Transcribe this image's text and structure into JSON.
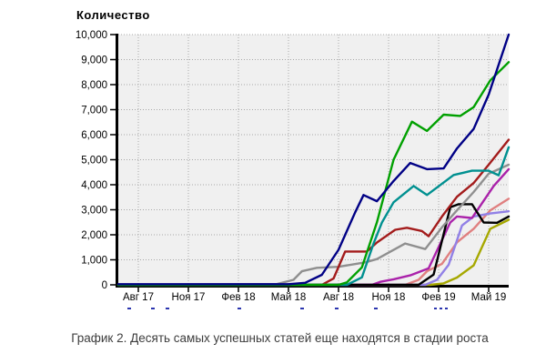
{
  "chart": {
    "title": "Количество",
    "caption": "График 2. Десять самых успешных статей еще находятся в стадии роста"
  },
  "chart_data": {
    "type": "line",
    "title": "Количество",
    "caption": "График 2. Десять самых успешных статей еще находятся в стадии роста",
    "xlabel": "",
    "ylabel": "Количество",
    "ylim": [
      0,
      10000
    ],
    "x_range_months": [
      -0.2,
      23.2
    ],
    "grid": "dotted",
    "plot_bg": "#f0f0f0",
    "grid_color": "#a8a8a8",
    "axis_color": "#000000",
    "legend_position": "clipped-below-axis",
    "clipped_legend_color": "#2b35af",
    "clipped_legend_marks": [
      [
        140,
        4
      ],
      [
        166,
        4
      ],
      [
        182,
        4
      ],
      [
        261,
        4
      ],
      [
        330,
        4
      ],
      [
        368,
        4
      ],
      [
        411,
        4
      ],
      [
        477,
        3
      ],
      [
        483,
        3
      ],
      [
        489,
        3
      ]
    ],
    "y_ticks": [
      {
        "value": 0,
        "label": "0"
      },
      {
        "value": 1000,
        "label": "1,000"
      },
      {
        "value": 2000,
        "label": "2,000"
      },
      {
        "value": 3000,
        "label": "3,000"
      },
      {
        "value": 4000,
        "label": "4,000"
      },
      {
        "value": 5000,
        "label": "5,000"
      },
      {
        "value": 6000,
        "label": "6,000"
      },
      {
        "value": 7000,
        "label": "7,000"
      },
      {
        "value": 8000,
        "label": "8,000"
      },
      {
        "value": 9000,
        "label": "9,000"
      },
      {
        "value": 10000,
        "label": "10,000"
      }
    ],
    "x_ticks": [
      {
        "month": 1,
        "label": "Авг 17"
      },
      {
        "month": 4,
        "label": "Ноя 17"
      },
      {
        "month": 7,
        "label": "Фев 18"
      },
      {
        "month": 10,
        "label": "Май 18"
      },
      {
        "month": 13,
        "label": "Авг 18"
      },
      {
        "month": 16,
        "label": "Ноя 18"
      },
      {
        "month": 19,
        "label": "Фев 19"
      },
      {
        "month": 22,
        "label": "Май 19"
      }
    ],
    "series": [
      {
        "name": "line-olive",
        "color": "#a6a800",
        "points": [
          [
            -0.2,
            0
          ],
          [
            18.5,
            0
          ],
          [
            19.3,
            60
          ],
          [
            20.1,
            290
          ],
          [
            21.1,
            780
          ],
          [
            22.1,
            2240
          ],
          [
            23.2,
            2600
          ]
        ]
      },
      {
        "name": "line-salmon",
        "color": "#e08080",
        "points": [
          [
            -0.2,
            0
          ],
          [
            17,
            0
          ],
          [
            17.8,
            200
          ],
          [
            18.3,
            540
          ],
          [
            19.2,
            840
          ],
          [
            20.1,
            1700
          ],
          [
            21.1,
            2240
          ],
          [
            22.1,
            2980
          ],
          [
            23.2,
            3440
          ]
        ]
      },
      {
        "name": "line-lavender",
        "color": "#9180e6",
        "points": [
          [
            -0.2,
            0
          ],
          [
            18.2,
            0
          ],
          [
            18.9,
            200
          ],
          [
            19.6,
            800
          ],
          [
            20.4,
            2370
          ],
          [
            21.1,
            2730
          ],
          [
            22.1,
            2850
          ],
          [
            23.2,
            2940
          ]
        ]
      },
      {
        "name": "line-magenta",
        "color": "#aa22aa",
        "points": [
          [
            -0.2,
            0
          ],
          [
            15,
            0
          ],
          [
            15.5,
            120
          ],
          [
            16.3,
            220
          ],
          [
            17.3,
            380
          ],
          [
            18.4,
            660
          ],
          [
            19.7,
            2490
          ],
          [
            20.1,
            2730
          ],
          [
            21,
            2670
          ],
          [
            22.3,
            3950
          ],
          [
            23.2,
            4620
          ]
        ]
      },
      {
        "name": "line-black",
        "color": "#000000",
        "points": [
          [
            -0.2,
            0
          ],
          [
            17.8,
            0
          ],
          [
            18.7,
            410
          ],
          [
            19.7,
            3100
          ],
          [
            20.2,
            3220
          ],
          [
            21,
            3220
          ],
          [
            21.7,
            2490
          ],
          [
            22.5,
            2480
          ],
          [
            23.2,
            2730
          ]
        ]
      },
      {
        "name": "line-gray",
        "color": "#8f8f8f",
        "points": [
          [
            -0.2,
            0
          ],
          [
            9.3,
            30
          ],
          [
            10.3,
            200
          ],
          [
            10.8,
            540
          ],
          [
            11.7,
            680
          ],
          [
            13,
            720
          ],
          [
            14.6,
            900
          ],
          [
            15.3,
            1030
          ],
          [
            17,
            1650
          ],
          [
            18.2,
            1430
          ],
          [
            19.2,
            2300
          ],
          [
            20.1,
            2980
          ],
          [
            21.1,
            3710
          ],
          [
            22,
            4440
          ],
          [
            23.2,
            4800
          ]
        ]
      },
      {
        "name": "line-darkred",
        "color": "#a31b1b",
        "points": [
          [
            -0.2,
            0
          ],
          [
            12,
            0
          ],
          [
            12.7,
            250
          ],
          [
            13.4,
            1330
          ],
          [
            14.7,
            1330
          ],
          [
            15.3,
            1690
          ],
          [
            16.4,
            2200
          ],
          [
            17.1,
            2280
          ],
          [
            18,
            2150
          ],
          [
            18.4,
            1940
          ],
          [
            19.2,
            2730
          ],
          [
            20.1,
            3520
          ],
          [
            21.1,
            4070
          ],
          [
            22,
            4800
          ],
          [
            23.2,
            5800
          ]
        ]
      },
      {
        "name": "line-teal",
        "color": "#009090",
        "points": [
          [
            -0.2,
            0
          ],
          [
            13.5,
            0
          ],
          [
            14.4,
            300
          ],
          [
            15.1,
            1650
          ],
          [
            15.6,
            2490
          ],
          [
            16.3,
            3300
          ],
          [
            17.5,
            3950
          ],
          [
            18.3,
            3590
          ],
          [
            19.9,
            4390
          ],
          [
            21,
            4560
          ],
          [
            22,
            4560
          ],
          [
            22.6,
            4380
          ],
          [
            23.2,
            5500
          ]
        ]
      },
      {
        "name": "line-green",
        "color": "#00a000",
        "points": [
          [
            -0.2,
            0
          ],
          [
            13,
            0
          ],
          [
            13.5,
            100
          ],
          [
            14.4,
            700
          ],
          [
            15.3,
            2500
          ],
          [
            16.3,
            5000
          ],
          [
            17.4,
            6520
          ],
          [
            18.3,
            6150
          ],
          [
            19.3,
            6800
          ],
          [
            20.3,
            6750
          ],
          [
            21.1,
            7100
          ],
          [
            22.1,
            8170
          ],
          [
            23.2,
            8900
          ]
        ]
      },
      {
        "name": "line-navy",
        "color": "#000085",
        "points": [
          [
            -0.2,
            25
          ],
          [
            10,
            25
          ],
          [
            11,
            80
          ],
          [
            12,
            400
          ],
          [
            13,
            1400
          ],
          [
            14,
            2900
          ],
          [
            14.5,
            3590
          ],
          [
            15.3,
            3340
          ],
          [
            16.3,
            4150
          ],
          [
            17.3,
            4870
          ],
          [
            18.3,
            4620
          ],
          [
            19.3,
            4650
          ],
          [
            20.1,
            5450
          ],
          [
            21.1,
            6230
          ],
          [
            22,
            7600
          ],
          [
            23.2,
            10000
          ]
        ]
      }
    ]
  }
}
